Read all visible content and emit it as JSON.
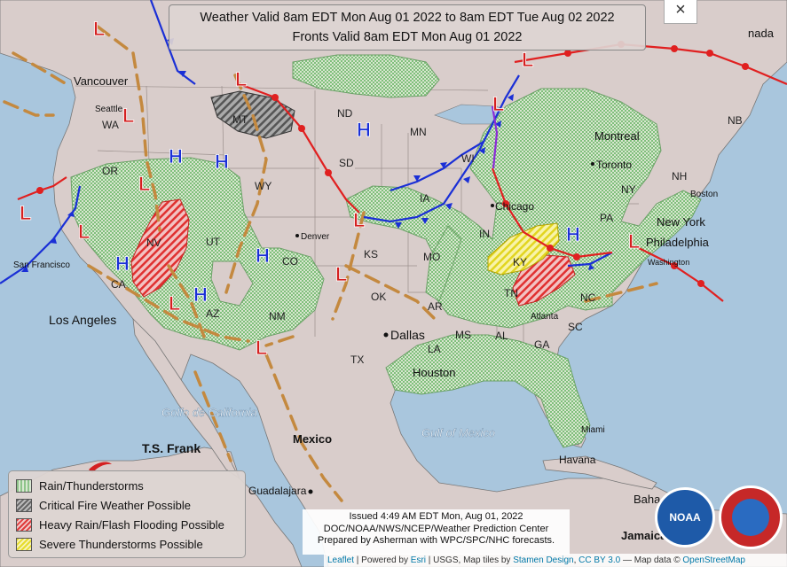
{
  "title": {
    "line1": "Weather Valid 8am EDT Mon Aug 01 2022 to 8am EDT Tue Aug 02 2022",
    "line2": "Fronts Valid 8am EDT Mon Aug 01 2022"
  },
  "close_label": "×",
  "legend": {
    "items": [
      {
        "label": "Rain/Thunderstorms"
      },
      {
        "label": "Critical Fire Weather Possible"
      },
      {
        "label": "Heavy Rain/Flash Flooding Possible"
      },
      {
        "label": "Severe Thunderstorms Possible"
      }
    ]
  },
  "issued": {
    "line1": "Issued 4:49 AM EDT Mon, Aug 01, 2022",
    "line2": "DOC/NOAA/NWS/NCEP/Weather Prediction Center",
    "line3": "Prepared by Asherman with WPC/SPC/NHC forecasts."
  },
  "attribution": {
    "leaflet": "Leaflet",
    "powered": " | Powered by ",
    "esri": "Esri",
    "rest": " | USGS, Map tiles by ",
    "stamen": "Stamen Design",
    "cc": "CC BY 3.0",
    "mapdata": " — Map data © ",
    "osm": "OpenStreetMap"
  },
  "logos": {
    "noaa": "NOAA"
  },
  "colors": {
    "land": "#d9cdcb",
    "water": "#a9c6dd",
    "low": "#d42020",
    "high": "#1a2fd6",
    "trough": "#c4893f",
    "cold_front": "#1a2fd6",
    "warm_front": "#e02020"
  },
  "map_labels": {
    "vancouver": "Vancouver",
    "seattle": "Seattle",
    "wa": "WA",
    "or": "OR",
    "nv": "NV",
    "ca": "CA",
    "mt": "MT",
    "wy": "WY",
    "ut": "UT",
    "co": "CO",
    "az": "AZ",
    "nm": "NM",
    "nd": "ND",
    "sd": "SD",
    "ks": "KS",
    "ok": "OK",
    "tx": "TX",
    "mn": "MN",
    "wi": "WI",
    "ia": "IA",
    "mo": "MO",
    "ar": "AR",
    "la": "LA",
    "ms": "MS",
    "al": "AL",
    "ga": "GA",
    "sc": "SC",
    "nc": "NC",
    "tn": "TN",
    "ky": "KY",
    "in": "IN",
    "pa": "PA",
    "ny": "NY",
    "nb": "NB",
    "nh": "NH",
    "denver": "Denver",
    "san_francisco": "San Francisco",
    "los_angeles": "Los Angeles",
    "dallas": "Dallas",
    "houston": "Houston",
    "atlanta": "Atlanta",
    "chicago": "Chicago",
    "montreal": "Montreal",
    "toronto": "Toronto",
    "boston": "Boston",
    "new_york": "New York",
    "philadelphia": "Philadelphia",
    "washington": "Washington",
    "miami": "Miami",
    "havana": "Havana",
    "jamaica": "Jamaica",
    "mexico": "Mexico",
    "guadalajara": "Guadalajara",
    "golfo": "Golfo de California",
    "gulf": "Gulf of Mexico",
    "ts_frank": "T.S. Frank",
    "h": "H",
    "l": "L",
    "baha": "Baha",
    "nada": "nada"
  }
}
